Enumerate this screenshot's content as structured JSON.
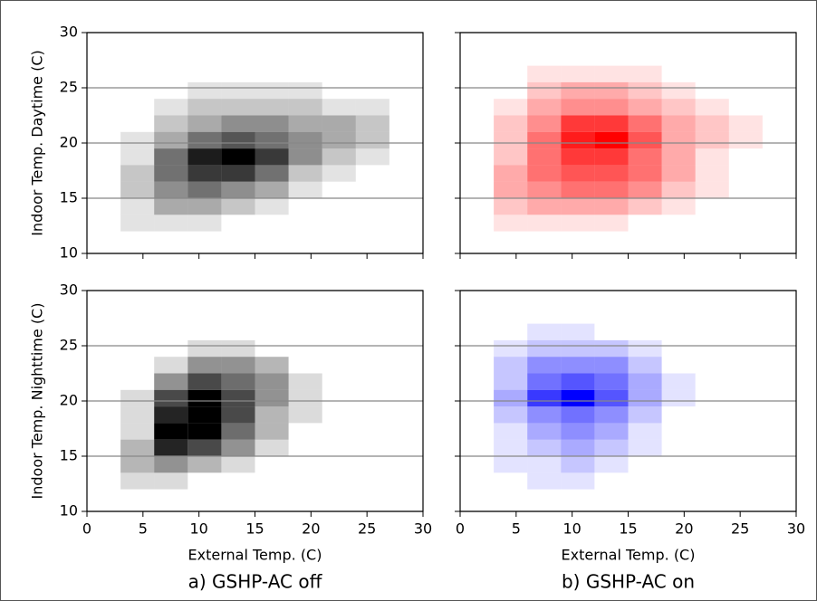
{
  "chart_data": [
    {
      "type": "heatmap",
      "color": "#000000",
      "ylabel": "Indoor Temp. Daytime (C)",
      "xlim": [
        0,
        30
      ],
      "ylim": [
        10,
        30
      ],
      "xticks": [
        0,
        5,
        10,
        15,
        20,
        25,
        30
      ],
      "yticks": [
        10,
        15,
        20,
        25,
        30
      ],
      "x_tick_labels": false,
      "y_tick_labels": true,
      "grid": true,
      "xbins": [
        0,
        3,
        6,
        9,
        12,
        15,
        18,
        21,
        24,
        27,
        30
      ],
      "ybins": [
        12,
        13.5,
        15,
        16.5,
        18,
        19.5,
        21,
        22.5,
        24,
        25.5,
        27
      ],
      "z": [
        [
          0,
          1,
          1,
          1,
          0,
          0,
          0,
          0,
          0,
          0
        ],
        [
          0,
          1,
          3,
          3,
          2,
          1,
          0,
          0,
          0,
          0
        ],
        [
          0,
          2,
          4,
          5,
          4,
          3,
          1,
          0,
          0,
          0
        ],
        [
          0,
          2,
          5,
          7,
          7,
          5,
          2,
          1,
          0,
          0
        ],
        [
          0,
          1,
          5,
          8,
          9,
          7,
          4,
          2,
          1,
          0
        ],
        [
          0,
          1,
          3,
          5,
          6,
          5,
          4,
          3,
          2,
          0
        ],
        [
          0,
          0,
          2,
          3,
          4,
          4,
          3,
          3,
          2,
          0
        ],
        [
          0,
          0,
          1,
          2,
          2,
          2,
          2,
          1,
          1,
          0
        ],
        [
          0,
          0,
          0,
          1,
          1,
          1,
          1,
          0,
          0,
          0
        ],
        [
          0,
          0,
          0,
          0,
          0,
          0,
          0,
          0,
          0,
          0
        ]
      ]
    },
    {
      "type": "heatmap",
      "color": "#ff0000",
      "xlim": [
        0,
        30
      ],
      "ylim": [
        10,
        30
      ],
      "xticks": [
        0,
        5,
        10,
        15,
        20,
        25,
        30
      ],
      "yticks": [
        10,
        15,
        20,
        25,
        30
      ],
      "x_tick_labels": false,
      "y_tick_labels": false,
      "grid": true,
      "xbins": [
        0,
        3,
        6,
        9,
        12,
        15,
        18,
        21,
        24,
        27,
        30
      ],
      "ybins": [
        12,
        13.5,
        15,
        16.5,
        18,
        19.5,
        21,
        22.5,
        24,
        25.5,
        27
      ],
      "z": [
        [
          0,
          1,
          1,
          1,
          1,
          0,
          0,
          0,
          0,
          0
        ],
        [
          0,
          2,
          3,
          3,
          3,
          2,
          1,
          0,
          0,
          0
        ],
        [
          0,
          3,
          4,
          5,
          5,
          4,
          2,
          1,
          0,
          0
        ],
        [
          0,
          3,
          5,
          6,
          6,
          5,
          3,
          1,
          0,
          0
        ],
        [
          0,
          2,
          5,
          7,
          7,
          5,
          3,
          1,
          0,
          0
        ],
        [
          0,
          2,
          5,
          8,
          9,
          6,
          3,
          2,
          1,
          0
        ],
        [
          0,
          2,
          4,
          7,
          7,
          5,
          3,
          2,
          1,
          0
        ],
        [
          0,
          1,
          3,
          4,
          4,
          3,
          2,
          1,
          0,
          0
        ],
        [
          0,
          0,
          2,
          3,
          3,
          2,
          1,
          0,
          0,
          0
        ],
        [
          0,
          0,
          1,
          1,
          1,
          1,
          0,
          0,
          0,
          0
        ]
      ]
    },
    {
      "type": "heatmap",
      "color": "#000000",
      "ylabel": "Indoor Temp. Nighttime (C)",
      "xlabel": "External Temp. (C)",
      "caption": "a) GSHP-AC off",
      "xlim": [
        0,
        30
      ],
      "ylim": [
        10,
        30
      ],
      "xticks": [
        0,
        5,
        10,
        15,
        20,
        25,
        30
      ],
      "yticks": [
        10,
        15,
        20,
        25,
        30
      ],
      "x_tick_labels": true,
      "y_tick_labels": true,
      "grid": true,
      "xbins": [
        0,
        3,
        6,
        9,
        12,
        15,
        18,
        21,
        24,
        27,
        30
      ],
      "ybins": [
        12,
        13.5,
        15,
        16.5,
        18,
        19.5,
        21,
        22.5,
        24,
        25.5,
        27
      ],
      "z": [
        [
          0,
          1,
          1,
          0,
          0,
          0,
          0,
          0,
          0,
          0
        ],
        [
          0,
          2,
          3,
          2,
          1,
          0,
          0,
          0,
          0,
          0
        ],
        [
          0,
          2,
          6,
          5,
          3,
          1,
          0,
          0,
          0,
          0
        ],
        [
          0,
          1,
          7,
          7,
          4,
          2,
          0,
          0,
          0,
          0
        ],
        [
          0,
          1,
          6,
          7,
          5,
          2,
          1,
          0,
          0,
          0
        ],
        [
          0,
          1,
          5,
          7,
          5,
          3,
          1,
          0,
          0,
          0
        ],
        [
          0,
          0,
          3,
          5,
          4,
          3,
          1,
          0,
          0,
          0
        ],
        [
          0,
          0,
          1,
          3,
          3,
          2,
          0,
          0,
          0,
          0
        ],
        [
          0,
          0,
          0,
          1,
          1,
          0,
          0,
          0,
          0,
          0
        ],
        [
          0,
          0,
          0,
          0,
          0,
          0,
          0,
          0,
          0,
          0
        ]
      ]
    },
    {
      "type": "heatmap",
      "color": "#0000ff",
      "xlabel": "External Temp. (C)",
      "caption": "b) GSHP-AC on",
      "xlim": [
        0,
        30
      ],
      "ylim": [
        10,
        30
      ],
      "xticks": [
        0,
        5,
        10,
        15,
        20,
        25,
        30
      ],
      "yticks": [
        10,
        15,
        20,
        25,
        30
      ],
      "x_tick_labels": true,
      "y_tick_labels": false,
      "grid": true,
      "xbins": [
        0,
        3,
        6,
        9,
        12,
        15,
        18,
        21,
        24,
        27,
        30
      ],
      "ybins": [
        12,
        13.5,
        15,
        16.5,
        18,
        19.5,
        21,
        22.5,
        24,
        25.5,
        27
      ],
      "z": [
        [
          0,
          0,
          1,
          1,
          0,
          0,
          0,
          0,
          0,
          0
        ],
        [
          0,
          1,
          1,
          2,
          1,
          0,
          0,
          0,
          0,
          0
        ],
        [
          0,
          1,
          2,
          3,
          2,
          1,
          0,
          0,
          0,
          0
        ],
        [
          0,
          1,
          3,
          4,
          3,
          1,
          0,
          0,
          0,
          0
        ],
        [
          0,
          2,
          4,
          5,
          4,
          2,
          0,
          0,
          0,
          0
        ],
        [
          0,
          3,
          7,
          9,
          6,
          3,
          1,
          0,
          0,
          0
        ],
        [
          0,
          2,
          5,
          6,
          5,
          3,
          1,
          0,
          0,
          0
        ],
        [
          0,
          2,
          4,
          4,
          4,
          2,
          0,
          0,
          0,
          0
        ],
        [
          0,
          1,
          2,
          2,
          2,
          1,
          0,
          0,
          0,
          0
        ],
        [
          0,
          0,
          1,
          1,
          0,
          0,
          0,
          0,
          0,
          0
        ]
      ]
    }
  ]
}
